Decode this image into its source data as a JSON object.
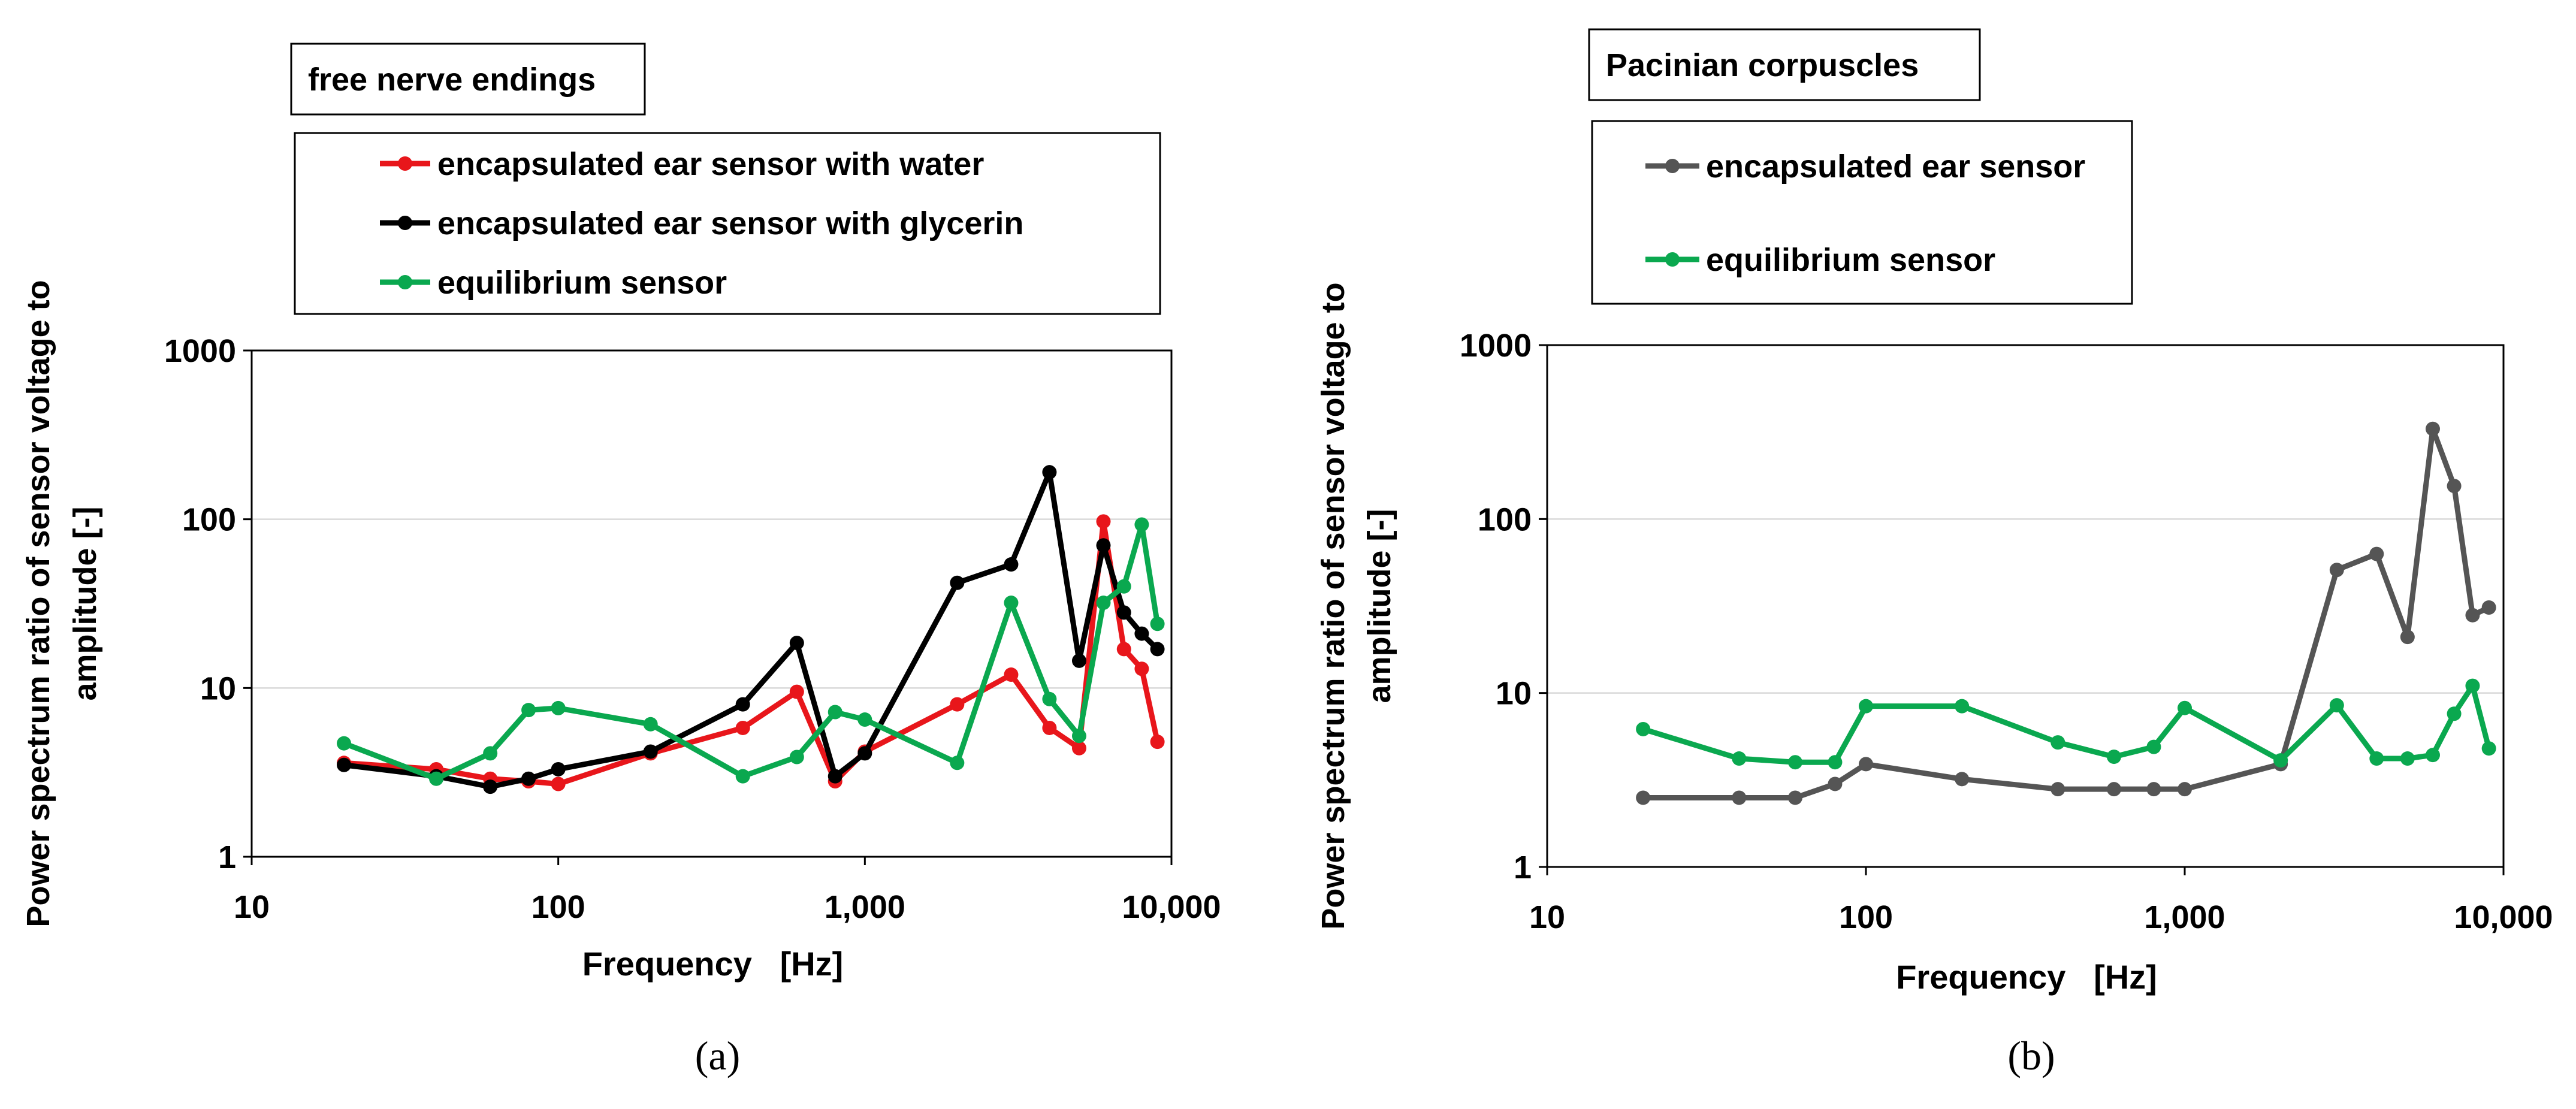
{
  "chart_data": [
    {
      "type": "line",
      "panel_label": "(a)",
      "title": "free nerve endings",
      "xlabel": "Frequency   [Hz]",
      "ylabel": "Power spectrum ratio of sensor voltage to amplitude [-]",
      "ylabel_lines": [
        "Power spectrum ratio of sensor voltage to",
        "amplitude [-]"
      ],
      "xscale": "log",
      "yscale": "log",
      "xlim": [
        10,
        10000
      ],
      "ylim": [
        1,
        1000
      ],
      "xticks": [
        10,
        100,
        1000,
        10000
      ],
      "xtick_labels": [
        "10",
        "100",
        "1,000",
        "10,000"
      ],
      "yticks": [
        1,
        10,
        100,
        1000
      ],
      "ytick_labels": [
        "1",
        "10",
        "100",
        "1000"
      ],
      "grid": "horizontal",
      "series": [
        {
          "name": "encapsulated ear sensor with water",
          "color": "#e8161b",
          "x": [
            20,
            40,
            60,
            80,
            100,
            200,
            400,
            600,
            800,
            1000,
            2000,
            3000,
            4000,
            5000,
            6000,
            7000,
            8000,
            9000
          ],
          "y": [
            3.6,
            3.3,
            2.9,
            2.8,
            2.7,
            4.1,
            5.8,
            9.5,
            2.8,
            4.2,
            8.0,
            12.0,
            5.8,
            4.4,
            97,
            17,
            13,
            4.8
          ]
        },
        {
          "name": "encapsulated ear sensor with glycerin",
          "color": "#000000",
          "x": [
            20,
            40,
            60,
            80,
            100,
            200,
            400,
            600,
            800,
            1000,
            2000,
            3000,
            4000,
            5000,
            6000,
            7000,
            8000,
            9000
          ],
          "y": [
            3.5,
            3.0,
            2.6,
            2.9,
            3.3,
            4.2,
            8.0,
            18.5,
            3.0,
            4.1,
            42,
            54,
            190,
            14.5,
            70,
            28,
            21,
            17
          ]
        },
        {
          "name": "equilibrium sensor",
          "color": "#0aa84f",
          "x": [
            20,
            40,
            60,
            80,
            100,
            200,
            400,
            600,
            800,
            1000,
            2000,
            3000,
            4000,
            5000,
            6000,
            7000,
            8000,
            9000
          ],
          "y": [
            4.7,
            2.9,
            4.1,
            7.4,
            7.6,
            6.1,
            3.0,
            3.9,
            7.2,
            6.5,
            3.6,
            32,
            8.6,
            5.2,
            32,
            40,
            93,
            24
          ]
        }
      ]
    },
    {
      "type": "line",
      "panel_label": "(b)",
      "title": "Pacinian corpuscles",
      "xlabel": "Frequency   [Hz]",
      "ylabel": "Power spectrum ratio of sensor voltage to amplitude [-]",
      "ylabel_lines": [
        "Power spectrum ratio of sensor voltage to",
        "amplitude [-]"
      ],
      "xscale": "log",
      "yscale": "log",
      "xlim": [
        10,
        10000
      ],
      "ylim": [
        1,
        1000
      ],
      "xticks": [
        10,
        100,
        1000,
        10000
      ],
      "xtick_labels": [
        "10",
        "100",
        "1,000",
        "10,000"
      ],
      "yticks": [
        1,
        10,
        100,
        1000
      ],
      "ytick_labels": [
        "1",
        "10",
        "100",
        "1000"
      ],
      "grid": "horizontal",
      "series": [
        {
          "name": "encapsulated ear sensor",
          "color": "#555555",
          "x": [
            20,
            40,
            60,
            80,
            100,
            200,
            400,
            600,
            800,
            1000,
            2000,
            3000,
            4000,
            5000,
            6000,
            7000,
            8000,
            9000
          ],
          "y": [
            2.5,
            2.5,
            2.5,
            3.0,
            3.9,
            3.2,
            2.8,
            2.8,
            2.8,
            2.8,
            3.9,
            51,
            63,
            21,
            330,
            155,
            28,
            31
          ]
        },
        {
          "name": "equilibrium sensor",
          "color": "#0aa84f",
          "x": [
            20,
            40,
            60,
            80,
            100,
            200,
            400,
            600,
            800,
            1000,
            2000,
            3000,
            4000,
            5000,
            6000,
            7000,
            8000,
            9000
          ],
          "y": [
            6.2,
            4.2,
            4.0,
            4.0,
            8.4,
            8.4,
            5.2,
            4.3,
            4.9,
            8.2,
            4.1,
            8.5,
            4.2,
            4.2,
            4.4,
            7.6,
            11,
            4.8
          ]
        }
      ]
    }
  ]
}
